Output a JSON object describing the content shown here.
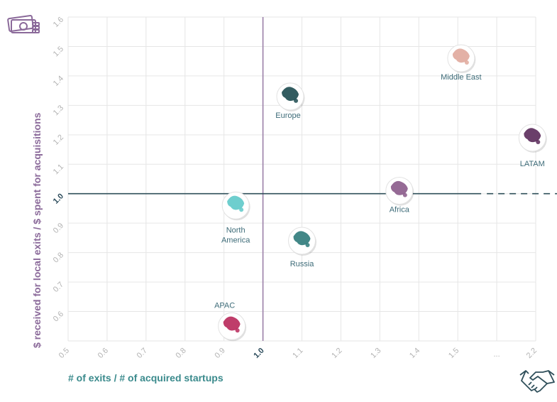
{
  "chart_data": {
    "type": "scatter",
    "xlabel": "# of exits / # of acquired startups",
    "ylabel": "$ received for local exits / $ spent for acquisitions",
    "x_ticks": [
      "0.5",
      "0.6",
      "0.7",
      "0.8",
      "0.9",
      "1.0",
      "1.1",
      "1.2",
      "1.3",
      "1.4",
      "1.5",
      "...",
      "2.2"
    ],
    "y_ticks": [
      "0.6",
      "0.7",
      "0.8",
      "0.9",
      "1.0",
      "1.1",
      "1.2",
      "1.3",
      "1.4",
      "1.5",
      "1.6"
    ],
    "xlim": [
      0.5,
      2.2
    ],
    "ylim": [
      0.5,
      1.6
    ],
    "x_scale": "broken axis between 1.5 and 2.2",
    "reference_lines": {
      "x": 1.0,
      "y": 1.0
    },
    "grid": true,
    "points": [
      {
        "label": "Middle East",
        "x": 1.53,
        "y": 1.46,
        "color": "#e0a99c"
      },
      {
        "label": "Europe",
        "x": 1.07,
        "y": 1.33,
        "color": "#1c4a4f"
      },
      {
        "label": "LATAM",
        "x": 2.17,
        "y": 1.19,
        "color": "#5a2a5a"
      },
      {
        "label": "Africa",
        "x": 1.35,
        "y": 1.01,
        "color": "#8a5a8a"
      },
      {
        "label": "North America",
        "x": 0.93,
        "y": 0.96,
        "color": "#5ec9c9"
      },
      {
        "label": "Russia",
        "x": 1.1,
        "y": 0.84,
        "color": "#2e7a7a"
      },
      {
        "label": "APAC",
        "x": 0.92,
        "y": 0.55,
        "color": "#b8285a"
      }
    ]
  },
  "icons": {
    "top_left": "money-icon",
    "bottom_right": "handshake-icon"
  },
  "colors": {
    "vline": "#9b7fa8",
    "hline": "#2f4f5a",
    "grid": "#e6e6e6"
  }
}
